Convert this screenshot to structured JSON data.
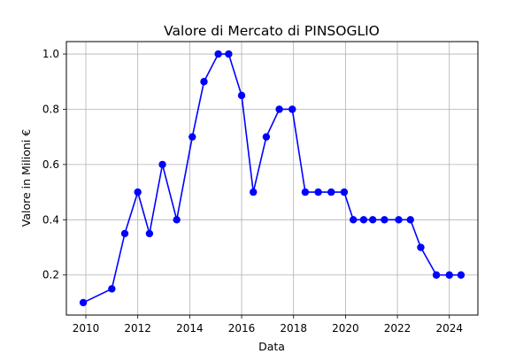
{
  "chart_data": {
    "type": "line",
    "title": "Valore di Mercato di PINSOGLIO",
    "xlabel": "Data",
    "ylabel": "Valore in Milioni €",
    "xlim": [
      2009.25,
      2025.1
    ],
    "ylim": [
      0.055,
      1.045
    ],
    "x_ticks": [
      2010,
      2012,
      2014,
      2016,
      2018,
      2020,
      2022,
      2024
    ],
    "x_tick_labels": [
      "2010",
      "2012",
      "2014",
      "2016",
      "2018",
      "2020",
      "2022",
      "2024"
    ],
    "y_ticks": [
      0.2,
      0.4,
      0.6,
      0.8,
      1.0
    ],
    "y_tick_labels": [
      "0.2",
      "0.4",
      "0.6",
      "0.8",
      "1.0"
    ],
    "grid": true,
    "colors": {
      "line": "#0000ff",
      "marker": "#0000ff"
    },
    "series": [
      {
        "x": [
          2009.9,
          2011.0,
          2011.5,
          2012.0,
          2012.45,
          2012.95,
          2013.5,
          2014.1,
          2014.55,
          2015.1,
          2015.5,
          2016.0,
          2016.45,
          2016.95,
          2017.45,
          2017.95,
          2018.45,
          2018.95,
          2019.45,
          2019.95,
          2020.3,
          2020.7,
          2021.05,
          2021.5,
          2022.05,
          2022.5,
          2022.9,
          2023.5,
          2024.0,
          2024.45
        ],
        "y": [
          0.1,
          0.15,
          0.35,
          0.5,
          0.35,
          0.6,
          0.4,
          0.7,
          0.9,
          1.0,
          1.0,
          0.85,
          0.5,
          0.7,
          0.8,
          0.8,
          0.5,
          0.5,
          0.5,
          0.5,
          0.4,
          0.4,
          0.4,
          0.4,
          0.4,
          0.4,
          0.3,
          0.2,
          0.2,
          0.2
        ]
      }
    ]
  }
}
